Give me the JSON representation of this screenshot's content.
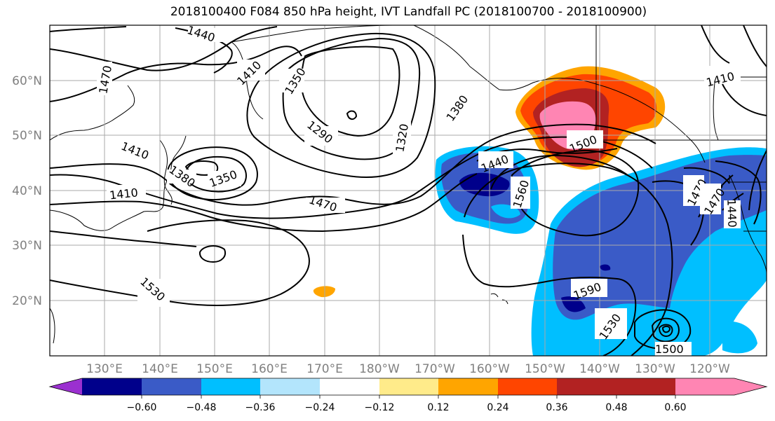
{
  "title": "2018100400 F084 850 hPa height, IVT Landfall PC (2018100700 - 2018100900)",
  "map": {
    "lat_labels": [
      "60°N",
      "50°N",
      "40°N",
      "30°N",
      "20°N"
    ],
    "lon_labels": [
      "130°E",
      "140°E",
      "150°E",
      "160°E",
      "170°E",
      "180°W",
      "170°W",
      "160°W",
      "150°W",
      "140°W",
      "130°W",
      "120°W"
    ],
    "contour_labels": [
      "1440",
      "1470",
      "1410",
      "1350",
      "1380",
      "1410",
      "1290",
      "1320",
      "1350",
      "1380",
      "1410",
      "1470",
      "1440",
      "1500",
      "1560",
      "1590",
      "1530",
      "1530",
      "1500",
      "1470",
      "1470",
      "1440",
      "1410",
      "1530"
    ]
  },
  "colorbar": {
    "colors": [
      "#9b30d0",
      "#00008b",
      "#3a5bc7",
      "#00bfff",
      "#b3e5fc",
      "#ffffff",
      "#ffeb8a",
      "#ffa500",
      "#ff4500",
      "#b22222",
      "#ff85b3"
    ],
    "tick_labels": [
      "−0.60",
      "−0.48",
      "−0.36",
      "−0.24",
      "−0.12",
      "0.12",
      "0.24",
      "0.36",
      "0.48",
      "0.60"
    ]
  }
}
